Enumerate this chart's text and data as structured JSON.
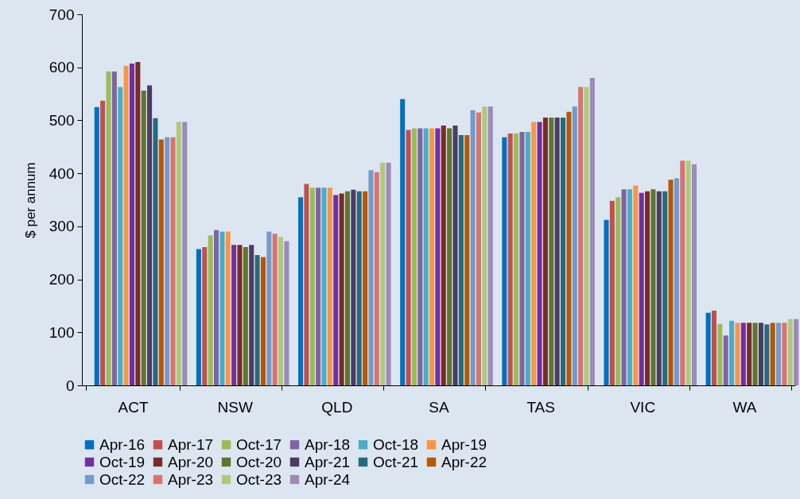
{
  "chart_data": {
    "type": "bar",
    "ylabel": "$ per annum",
    "categories": [
      "ACT",
      "NSW",
      "QLD",
      "SA",
      "TAS",
      "VIC",
      "WA"
    ],
    "ylim": [
      0,
      700
    ],
    "yticks": [
      0,
      100,
      200,
      300,
      400,
      500,
      600,
      700
    ],
    "grid": false,
    "legend": "bottom",
    "series": [
      {
        "name": "Apr-16",
        "color": "#0070c0",
        "values": [
          525,
          257,
          355,
          540,
          468,
          312,
          137
        ]
      },
      {
        "name": "Apr-17",
        "color": "#c0504d",
        "values": [
          537,
          261,
          380,
          482,
          475,
          348,
          141
        ]
      },
      {
        "name": "Oct-17",
        "color": "#9bbb59",
        "values": [
          592,
          283,
          373,
          485,
          475,
          355,
          116
        ]
      },
      {
        "name": "Apr-18",
        "color": "#8064a2",
        "values": [
          592,
          293,
          373,
          485,
          478,
          370,
          94
        ]
      },
      {
        "name": "Oct-18",
        "color": "#4bacc6",
        "values": [
          563,
          290,
          373,
          485,
          478,
          370,
          122
        ]
      },
      {
        "name": "Apr-19",
        "color": "#f79646",
        "values": [
          603,
          290,
          373,
          485,
          497,
          377,
          118
        ]
      },
      {
        "name": "Oct-19",
        "color": "#7030a0",
        "values": [
          607,
          265,
          359,
          485,
          497,
          363,
          118
        ]
      },
      {
        "name": "Apr-20",
        "color": "#772c2a",
        "values": [
          610,
          265,
          362,
          490,
          505,
          366,
          118
        ]
      },
      {
        "name": "Oct-20",
        "color": "#5f7530",
        "values": [
          556,
          261,
          366,
          485,
          505,
          370,
          118
        ]
      },
      {
        "name": "Apr-21",
        "color": "#4d3b62",
        "values": [
          566,
          265,
          369,
          490,
          505,
          366,
          118
        ]
      },
      {
        "name": "Oct-21",
        "color": "#276a7c",
        "values": [
          504,
          246,
          366,
          472,
          505,
          366,
          115
        ]
      },
      {
        "name": "Apr-22",
        "color": "#b65708",
        "values": [
          464,
          242,
          366,
          472,
          516,
          388,
          118
        ]
      },
      {
        "name": "Oct-22",
        "color": "#729aca",
        "values": [
          468,
          290,
          406,
          519,
          526,
          391,
          118
        ]
      },
      {
        "name": "Apr-23",
        "color": "#d9736f",
        "values": [
          468,
          286,
          402,
          515,
          563,
          424,
          118
        ]
      },
      {
        "name": "Oct-23",
        "color": "#afc97a",
        "values": [
          497,
          280,
          420,
          526,
          563,
          424,
          125
        ]
      },
      {
        "name": "Apr-24",
        "color": "#9d8ab8",
        "values": [
          497,
          272,
          420,
          526,
          580,
          417,
          125
        ]
      }
    ]
  }
}
